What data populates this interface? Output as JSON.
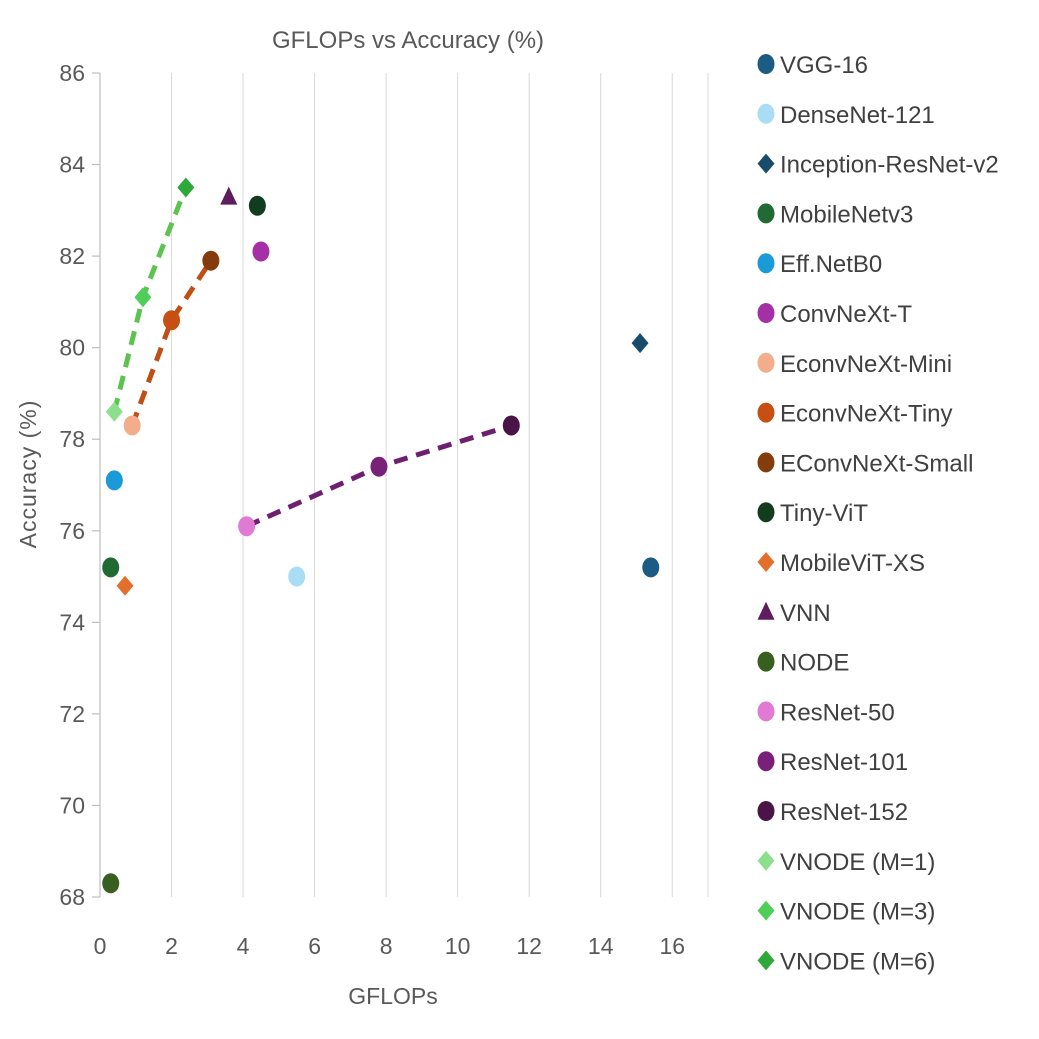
{
  "chart_data": {
    "type": "scatter",
    "title": "GFLOPs vs Accuracy (%)",
    "xlabel": "GFLOPs",
    "ylabel": "Accuracy (%)",
    "xlim": [
      0,
      17
    ],
    "ylim": [
      68,
      86
    ],
    "xticks": [
      0,
      2,
      4,
      6,
      8,
      10,
      12,
      14,
      16
    ],
    "yticks": [
      68,
      70,
      72,
      74,
      76,
      78,
      80,
      82,
      84,
      86
    ],
    "grid": "vertical",
    "legend_position": "right",
    "series": [
      {
        "name": "VGG-16",
        "marker": "circle",
        "color": "#1c5b82",
        "points": [
          [
            15.4,
            75.2
          ]
        ]
      },
      {
        "name": "DenseNet-121",
        "marker": "circle",
        "color": "#a9dcf5",
        "points": [
          [
            5.5,
            75.0
          ]
        ]
      },
      {
        "name": "Inception-ResNet-v2",
        "marker": "diamond",
        "color": "#194b6a",
        "points": [
          [
            15.1,
            80.1
          ]
        ]
      },
      {
        "name": "MobileNetv3",
        "marker": "circle",
        "color": "#1f6b33",
        "points": [
          [
            0.3,
            75.2
          ]
        ]
      },
      {
        "name": "Eff.NetB0",
        "marker": "circle",
        "color": "#1a9ad6",
        "points": [
          [
            0.4,
            77.1
          ]
        ]
      },
      {
        "name": "ConvNeXt-T",
        "marker": "circle",
        "color": "#a52fa5",
        "points": [
          [
            4.5,
            82.1
          ]
        ]
      },
      {
        "name": "EconvNeXt-Mini",
        "marker": "circle",
        "color": "#f3ad8a",
        "points": [
          [
            0.9,
            78.3
          ]
        ]
      },
      {
        "name": "EconvNeXt-Tiny",
        "marker": "circle",
        "color": "#c74f14",
        "points": [
          [
            2.0,
            80.6
          ]
        ]
      },
      {
        "name": "EConvNeXt-Small",
        "marker": "circle",
        "color": "#843c0c",
        "points": [
          [
            3.1,
            81.9
          ]
        ]
      },
      {
        "name": "Tiny-ViT",
        "marker": "circle",
        "color": "#113d1e",
        "points": [
          [
            4.4,
            83.1
          ]
        ]
      },
      {
        "name": "MobileViT-XS",
        "marker": "diamond",
        "color": "#e46f2d",
        "points": [
          [
            0.7,
            74.8
          ]
        ]
      },
      {
        "name": "VNN",
        "marker": "triangle",
        "color": "#5e1d5e",
        "points": [
          [
            3.6,
            83.3
          ]
        ]
      },
      {
        "name": "NODE",
        "marker": "circle",
        "color": "#375f1f",
        "points": [
          [
            0.3,
            68.3
          ]
        ]
      },
      {
        "name": "ResNet-50",
        "marker": "circle",
        "color": "#e07ad4",
        "points": [
          [
            4.1,
            76.1
          ]
        ]
      },
      {
        "name": "ResNet-101",
        "marker": "circle",
        "color": "#792079",
        "points": [
          [
            7.8,
            77.4
          ]
        ]
      },
      {
        "name": "ResNet-152",
        "marker": "circle",
        "color": "#4a1446",
        "points": [
          [
            11.5,
            78.3
          ]
        ]
      },
      {
        "name": "VNODE (M=1)",
        "marker": "diamond",
        "color": "#8de08b",
        "points": [
          [
            0.4,
            78.6
          ]
        ]
      },
      {
        "name": "VNODE (M=3)",
        "marker": "diamond",
        "color": "#4fcf5a",
        "points": [
          [
            1.2,
            81.1
          ]
        ]
      },
      {
        "name": "VNODE (M=6)",
        "marker": "diamond",
        "color": "#2fa83a",
        "points": [
          [
            2.4,
            83.5
          ]
        ]
      }
    ],
    "trend_lines": [
      {
        "style": "dashed",
        "color": "#5cc44e",
        "points": [
          [
            0.4,
            78.6
          ],
          [
            1.2,
            81.1
          ],
          [
            2.4,
            83.5
          ]
        ]
      },
      {
        "style": "dashed",
        "color": "#c04f15",
        "points": [
          [
            0.9,
            78.3
          ],
          [
            2.0,
            80.6
          ],
          [
            3.1,
            81.9
          ]
        ]
      },
      {
        "style": "dashed",
        "color": "#6f1f6f",
        "points": [
          [
            4.1,
            76.1
          ],
          [
            7.8,
            77.4
          ],
          [
            11.5,
            78.3
          ]
        ]
      }
    ]
  }
}
